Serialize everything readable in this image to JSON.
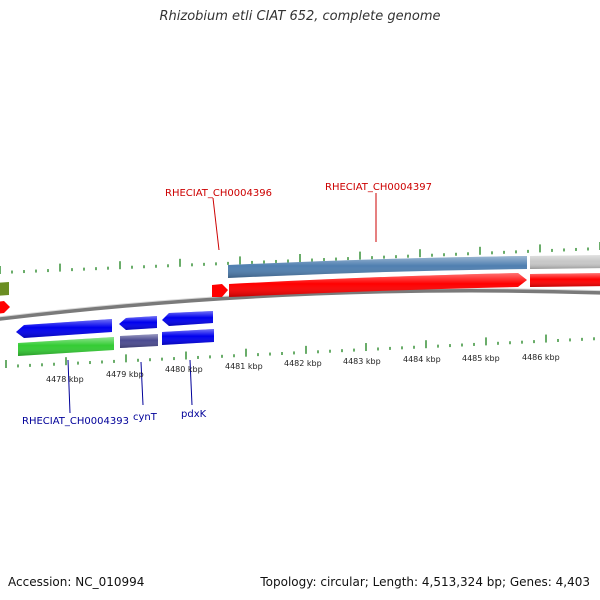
{
  "title": "Rhizobium etli CIAT 652, complete genome",
  "footer": {
    "accession": "Accession: NC_010994",
    "summary": "Topology: circular; Length: 4,513,324 bp; Genes: 4,403"
  },
  "scale_labels": [
    "4478 kbp",
    "4479 kbp",
    "4480 kbp",
    "4481 kbp",
    "4482 kbp",
    "4483 kbp",
    "4484 kbp",
    "4485 kbp",
    "4486 kbp"
  ],
  "gene_labels": {
    "top": [
      "RHECIAT_CH0004396",
      "RHECIAT_CH0004397"
    ],
    "bottom": [
      "RHECIAT_CH0004393",
      "cynT",
      "pdxK"
    ]
  },
  "colors": {
    "forward_cds": "#ff0000",
    "reverse_cds": "#0000ee",
    "forward_gene": "#4f7fb0",
    "reverse_gene_green": "#33cc33",
    "reverse_gene_purple": "#4a4a90",
    "other_gene": "#c8c8c8",
    "olive_gene": "#6b8e23",
    "top_label": "#cc0000",
    "bottom_label": "#000099",
    "tick": "#2a8a2a",
    "backbone": "#7a7a7a"
  }
}
